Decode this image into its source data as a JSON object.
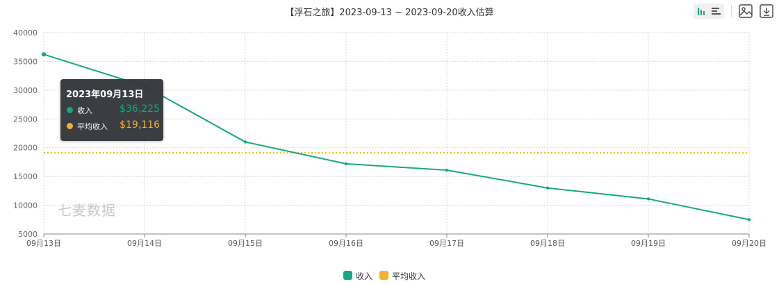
{
  "title": "【浮石之旅】2023-09-13 ~ 2023-09-20收入估算",
  "toolbar": {
    "bar_icon": "bar-chart-icon",
    "hbar_icon": "horizontal-bar-icon",
    "image_icon": "save-image-icon",
    "download_icon": "download-icon"
  },
  "watermark": "七麦数据",
  "tooltip": {
    "date": "2023年09月13日",
    "rows": [
      {
        "name": "收入",
        "value": "$36,225"
      },
      {
        "name": "平均收入",
        "value": "$19,116"
      }
    ]
  },
  "colors": {
    "income": "#15a883",
    "average": "#f5b031",
    "avg_line": "#e9c418"
  },
  "chart_data": {
    "type": "line",
    "title": "【浮石之旅】2023-09-13 ~ 2023-09-20收入估算",
    "categories": [
      "09月13日",
      "09月14日",
      "09月15日",
      "09月16日",
      "09月17日",
      "09月18日",
      "09月19日",
      "09月20日"
    ],
    "series": [
      {
        "name": "收入",
        "values": [
          36225,
          30700,
          21000,
          17200,
          16100,
          13000,
          11100,
          7500
        ]
      },
      {
        "name": "平均收入",
        "values": [
          19116,
          19116,
          19116,
          19116,
          19116,
          19116,
          19116,
          19116
        ]
      }
    ],
    "y_ticks": [
      "5000",
      "10000",
      "15000",
      "20000",
      "25000",
      "30000",
      "35000",
      "40000"
    ],
    "ylim": [
      5000,
      40000
    ],
    "grid": true,
    "legend": "bottom-center"
  }
}
